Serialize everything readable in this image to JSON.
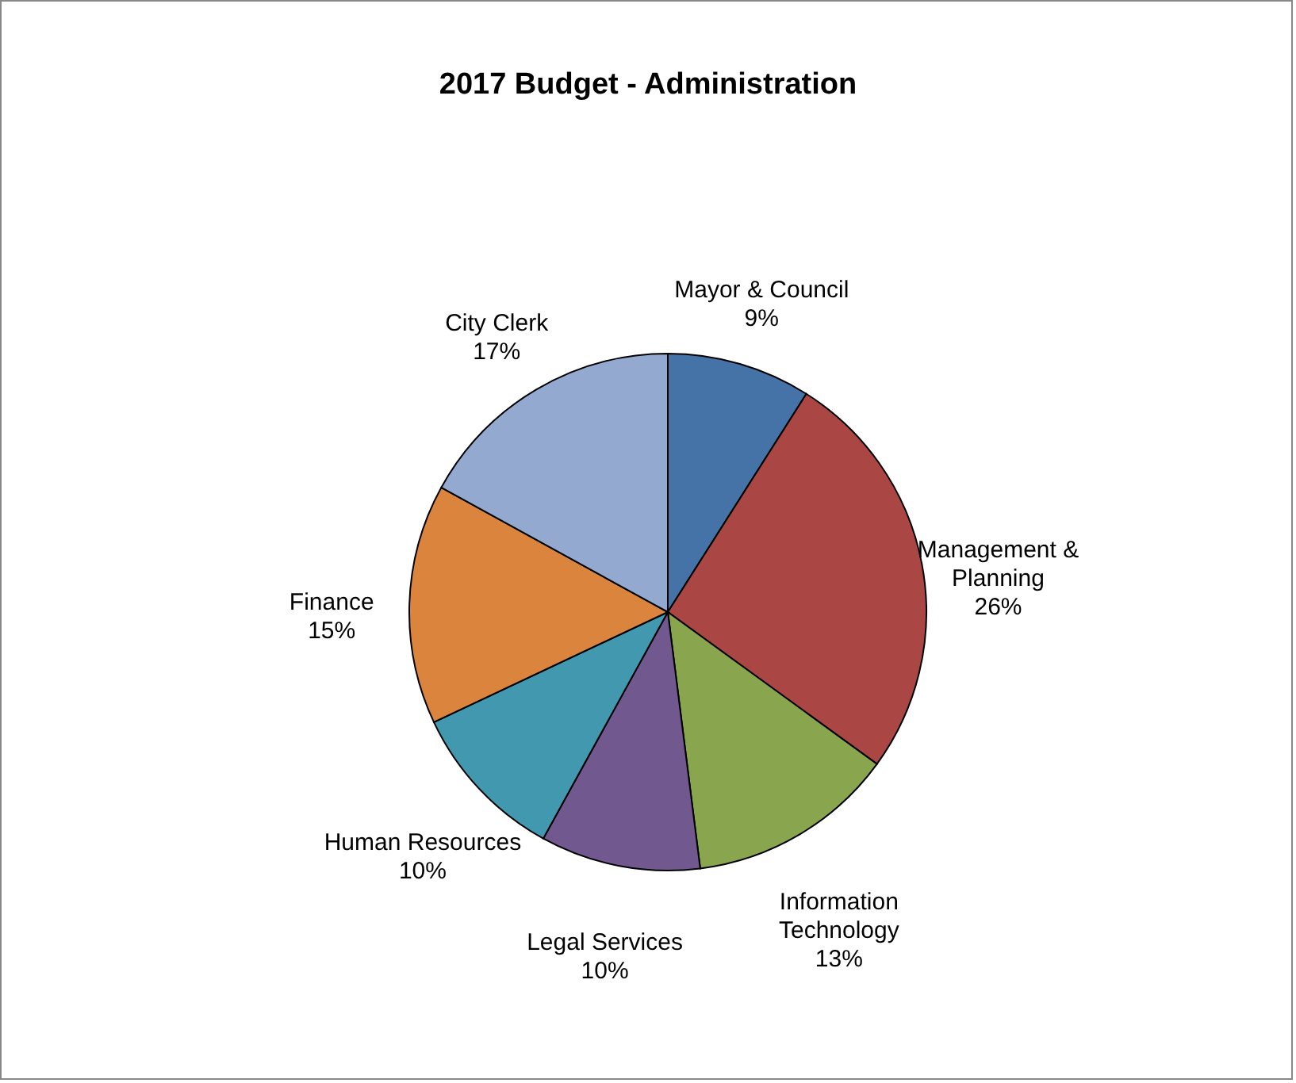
{
  "chart_data": {
    "type": "pie",
    "title": "2017 Budget - Administration",
    "categories": [
      "Mayor & Council",
      "Management & Planning",
      "Information Technology",
      "Legal Services",
      "Human Resources",
      "Finance",
      "City Clerk"
    ],
    "values": [
      9,
      26,
      13,
      10,
      10,
      15,
      17
    ],
    "value_labels": [
      "9%",
      "26%",
      "13%",
      "10%",
      "10%",
      "15%",
      "17%"
    ],
    "colors": [
      "#4572a7",
      "#aa4643",
      "#89a54e",
      "#71588f",
      "#4198af",
      "#db843d",
      "#93a9cf"
    ]
  }
}
